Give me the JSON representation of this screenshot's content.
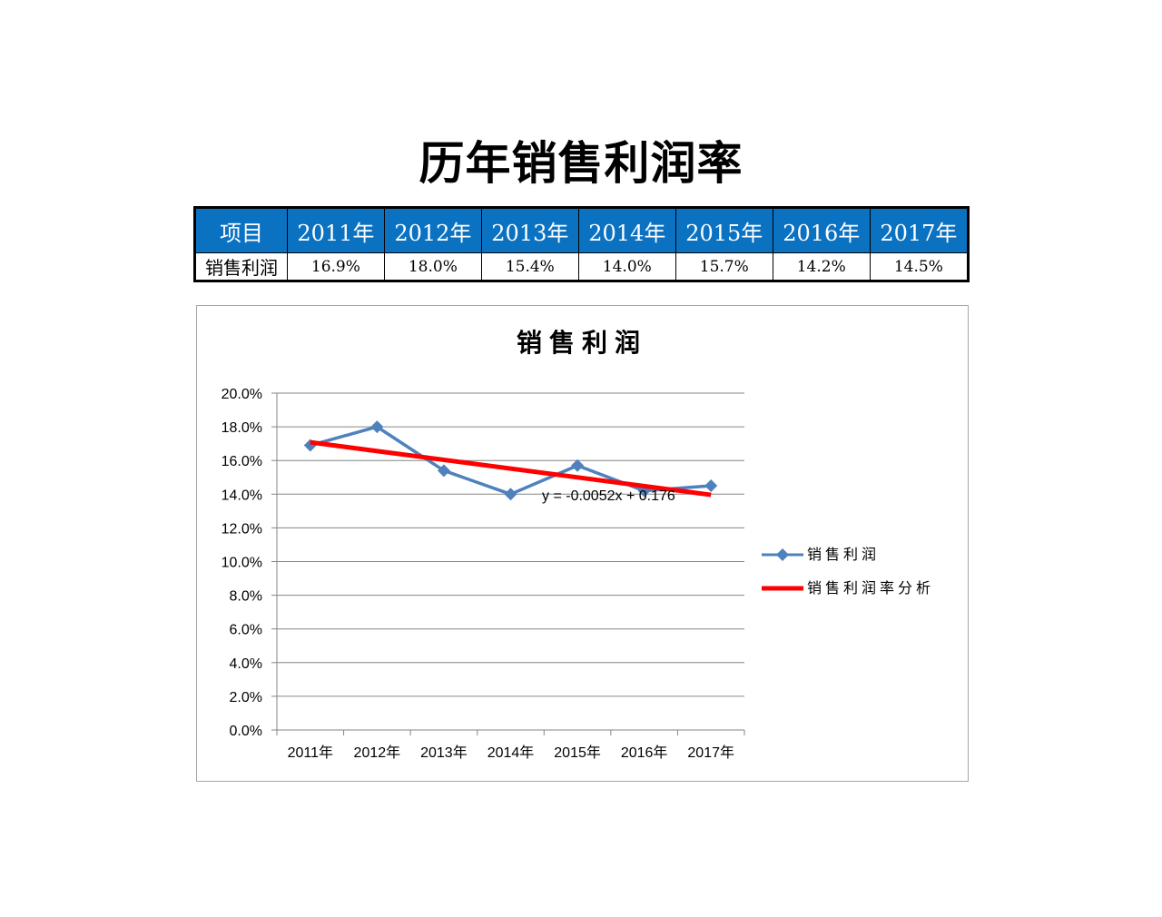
{
  "page": {
    "title": "历年销售利润率"
  },
  "table": {
    "header_label": "项目",
    "years": [
      "2011年",
      "2012年",
      "2013年",
      "2014年",
      "2015年",
      "2016年",
      "2017年"
    ],
    "row_label": "销售利润",
    "values": [
      "16.9%",
      "18.0%",
      "15.4%",
      "14.0%",
      "15.7%",
      "14.2%",
      "14.5%"
    ]
  },
  "colors": {
    "header_bg": "#0b72c2",
    "series_line": "#4f81bd",
    "trend_line": "#ff0000",
    "gridline": "#868686"
  },
  "chart_data": {
    "type": "line",
    "title": "销售利润",
    "categories": [
      "2011年",
      "2012年",
      "2013年",
      "2014年",
      "2015年",
      "2016年",
      "2017年"
    ],
    "y_ticks": [
      "0.0%",
      "2.0%",
      "4.0%",
      "6.0%",
      "8.0%",
      "10.0%",
      "12.0%",
      "14.0%",
      "16.0%",
      "18.0%",
      "20.0%"
    ],
    "ylim": [
      0,
      0.2
    ],
    "grid": true,
    "legend_position": "right",
    "series": [
      {
        "name": "销售利润",
        "values": [
          0.169,
          0.18,
          0.154,
          0.14,
          0.157,
          0.142,
          0.145
        ],
        "marker": "diamond"
      }
    ],
    "trendline": {
      "name": "销售利润率分析",
      "slope": -0.0052,
      "intercept": 0.176,
      "equation": "y =  -0.0052x + 0.176"
    }
  }
}
